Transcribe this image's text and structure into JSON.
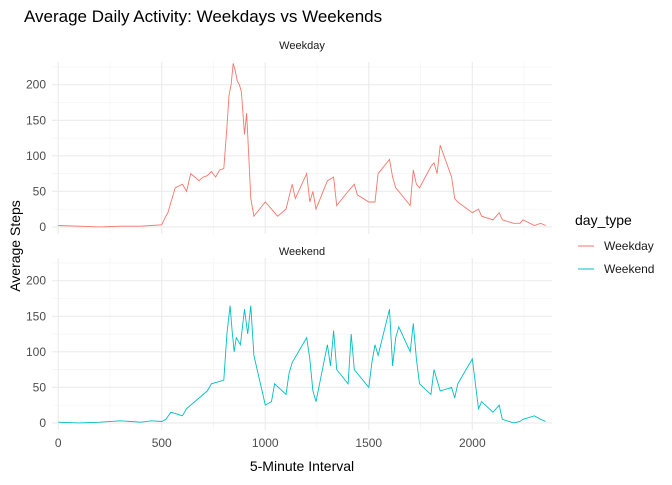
{
  "chart_data": {
    "type": "line",
    "title": "Average Daily Activity: Weekdays vs Weekends",
    "xlabel": "5-Minute Interval",
    "ylabel": "Average Steps",
    "xlim": [
      -30,
      2385
    ],
    "ylim": [
      -10,
      232
    ],
    "x_ticks": [
      0,
      500,
      1000,
      1500,
      2000
    ],
    "y_ticks": [
      0,
      50,
      100,
      150,
      200
    ],
    "grid": true,
    "legend": {
      "title": "day_type",
      "position": "right",
      "entries": [
        {
          "label": "Weekday",
          "color": "#F8766D"
        },
        {
          "label": "Weekend",
          "color": "#00BFC4"
        }
      ]
    },
    "panels": [
      {
        "strip": "Weekday",
        "color": "#F8766D",
        "x": [
          0,
          100,
          200,
          300,
          400,
          450,
          500,
          520,
          530,
          545,
          555,
          565,
          600,
          620,
          640,
          660,
          680,
          700,
          720,
          740,
          760,
          780,
          800,
          815,
          825,
          835,
          845,
          855,
          865,
          875,
          885,
          900,
          910,
          915,
          930,
          945,
          1000,
          1030,
          1045,
          1060,
          1100,
          1130,
          1145,
          1200,
          1215,
          1230,
          1245,
          1300,
          1330,
          1345,
          1400,
          1430,
          1445,
          1500,
          1530,
          1545,
          1600,
          1615,
          1630,
          1645,
          1700,
          1715,
          1730,
          1745,
          1800,
          1815,
          1830,
          1845,
          1900,
          1915,
          1930,
          2000,
          2030,
          2045,
          2100,
          2130,
          2145,
          2200,
          2230,
          2245,
          2300,
          2330,
          2355
        ],
        "y": [
          2,
          1,
          0,
          1,
          1,
          2,
          3,
          15,
          20,
          35,
          45,
          55,
          60,
          50,
          75,
          70,
          65,
          70,
          72,
          78,
          70,
          80,
          82,
          140,
          185,
          200,
          230,
          220,
          205,
          200,
          190,
          130,
          160,
          130,
          40,
          15,
          35,
          25,
          20,
          15,
          25,
          60,
          40,
          75,
          35,
          50,
          25,
          65,
          70,
          30,
          50,
          60,
          45,
          35,
          35,
          75,
          95,
          70,
          55,
          50,
          30,
          80,
          60,
          55,
          85,
          90,
          75,
          115,
          70,
          40,
          35,
          20,
          25,
          15,
          10,
          20,
          10,
          5,
          5,
          10,
          2,
          5,
          2
        ]
      },
      {
        "strip": "Weekend",
        "color": "#00BFC4",
        "x": [
          0,
          100,
          200,
          300,
          400,
          450,
          500,
          520,
          545,
          600,
          620,
          640,
          700,
          720,
          740,
          800,
          815,
          830,
          840,
          850,
          860,
          870,
          880,
          900,
          915,
          930,
          945,
          1000,
          1030,
          1045,
          1100,
          1115,
          1130,
          1200,
          1215,
          1230,
          1245,
          1300,
          1315,
          1330,
          1345,
          1400,
          1415,
          1430,
          1500,
          1515,
          1530,
          1545,
          1600,
          1615,
          1630,
          1645,
          1700,
          1715,
          1730,
          1745,
          1800,
          1815,
          1830,
          1845,
          1900,
          1915,
          1930,
          2000,
          2030,
          2045,
          2100,
          2130,
          2145,
          2200,
          2230,
          2245,
          2300,
          2330,
          2355
        ],
        "y": [
          1,
          0,
          1,
          3,
          1,
          3,
          2,
          5,
          15,
          10,
          20,
          25,
          40,
          45,
          55,
          60,
          125,
          165,
          130,
          100,
          120,
          115,
          110,
          160,
          125,
          165,
          95,
          25,
          30,
          55,
          40,
          70,
          85,
          120,
          90,
          45,
          30,
          110,
          80,
          130,
          75,
          55,
          125,
          75,
          50,
          85,
          110,
          95,
          160,
          80,
          120,
          135,
          100,
          140,
          90,
          55,
          40,
          75,
          60,
          45,
          50,
          35,
          55,
          90,
          20,
          30,
          15,
          25,
          5,
          0,
          2,
          5,
          10,
          5,
          2
        ]
      }
    ]
  }
}
